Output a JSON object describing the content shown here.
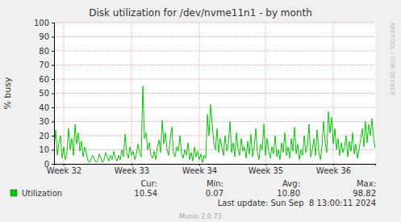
{
  "chart_data": {
    "type": "line",
    "title": "Disk utilization for /dev/nvme11n1 - by month",
    "y_label": "% busy",
    "watermark": "RRDTOOL / TOBI OETIKER",
    "categories": [
      null,
      null,
      null,
      null,
      null,
      null,
      "Week 32",
      null,
      null,
      null,
      null,
      null,
      null,
      null,
      null,
      null,
      null,
      null,
      null,
      null,
      null,
      null,
      null,
      null,
      null,
      null,
      null,
      null,
      null,
      null,
      null,
      null,
      null,
      null,
      null,
      null,
      null,
      null,
      null,
      null,
      null,
      null,
      null,
      null,
      null,
      null,
      null,
      null,
      "Week 33",
      null,
      null,
      null,
      null,
      null,
      null,
      null,
      null,
      null,
      null,
      null,
      null,
      null,
      null,
      null,
      null,
      null,
      null,
      null,
      null,
      null,
      null,
      null,
      null,
      null,
      null,
      null,
      null,
      null,
      null,
      null,
      null,
      null,
      null,
      null,
      null,
      null,
      null,
      null,
      null,
      null,
      "Week 34",
      null,
      null,
      null,
      null,
      null,
      null,
      null,
      null,
      null,
      null,
      null,
      null,
      null,
      null,
      null,
      null,
      null,
      null,
      null,
      null,
      null,
      null,
      null,
      null,
      null,
      null,
      null,
      null,
      null,
      null,
      null,
      null,
      null,
      null,
      null,
      null,
      null,
      null,
      null,
      null,
      "Week 35",
      null,
      null,
      null,
      null,
      null,
      null,
      null,
      null,
      null,
      null,
      null,
      null,
      null,
      null,
      null,
      null,
      null,
      null,
      null,
      null,
      null,
      null,
      null,
      null,
      null,
      null,
      null,
      null,
      null,
      null,
      null,
      null,
      null,
      null,
      null,
      null,
      null,
      null,
      null,
      null,
      null,
      "Week 36",
      null,
      null,
      null,
      null,
      null,
      null,
      null,
      null,
      null,
      null,
      null,
      null,
      null,
      null,
      null,
      null,
      null,
      null,
      null,
      null,
      null,
      null,
      null,
      null,
      null,
      null
    ],
    "series": [
      {
        "name": "Utilization",
        "color": "#00cc00",
        "values": [
          10,
          24,
          6,
          15,
          20,
          4,
          12,
          3,
          8,
          25,
          10,
          18,
          6,
          28,
          14,
          22,
          9,
          16,
          5,
          12,
          8,
          2,
          1,
          4,
          6,
          3,
          1,
          2,
          7,
          4,
          1,
          3,
          8,
          5,
          2,
          6,
          3,
          9,
          4,
          2,
          6,
          3,
          10,
          5,
          21,
          8,
          4,
          12,
          6,
          9,
          3,
          7,
          14,
          8,
          5,
          55,
          18,
          22,
          10,
          15,
          6,
          4,
          9,
          3,
          12,
          17,
          8,
          31,
          14,
          22,
          10,
          6,
          18,
          26,
          8,
          5,
          12,
          9,
          20,
          7,
          4,
          10,
          6,
          15,
          3,
          8,
          2,
          12,
          5,
          9,
          3,
          7,
          1,
          6,
          4,
          35,
          20,
          42,
          28,
          15,
          10,
          25,
          8,
          18,
          12,
          6,
          20,
          9,
          14,
          30,
          8,
          15,
          5,
          22,
          10,
          6,
          18,
          9,
          12,
          4,
          16,
          7,
          21,
          5,
          12,
          25,
          8,
          3,
          14,
          10,
          28,
          6,
          18,
          9,
          4,
          12,
          7,
          20,
          5,
          10,
          3,
          15,
          8,
          22,
          6,
          12,
          4,
          18,
          9,
          26,
          7,
          14,
          3,
          10,
          6,
          20,
          8,
          12,
          28,
          5,
          10,
          18,
          6,
          24,
          9,
          3,
          12,
          30,
          15,
          8,
          37,
          22,
          33,
          14,
          25,
          10,
          18,
          6,
          15,
          8,
          12,
          20,
          5,
          16,
          9,
          22,
          7,
          14,
          4,
          10,
          18,
          25,
          12,
          30,
          15,
          28,
          20,
          32,
          18,
          11
        ]
      }
    ],
    "ylim": [
      0,
      100
    ],
    "yticks": [
      0,
      10,
      20,
      30,
      40,
      50,
      60,
      70,
      80,
      90,
      100
    ],
    "grid": true,
    "stats": [
      {
        "name": "Cur:",
        "value": 10.54
      },
      {
        "name": "Min:",
        "value": 0.07
      },
      {
        "name": "Avg:",
        "value": 10.8
      },
      {
        "name": "Max:",
        "value": 98.82
      }
    ],
    "last_update": "Last update: Sun Sep  8 13:00:11 2024",
    "footer": "Munin 2.0.73"
  }
}
